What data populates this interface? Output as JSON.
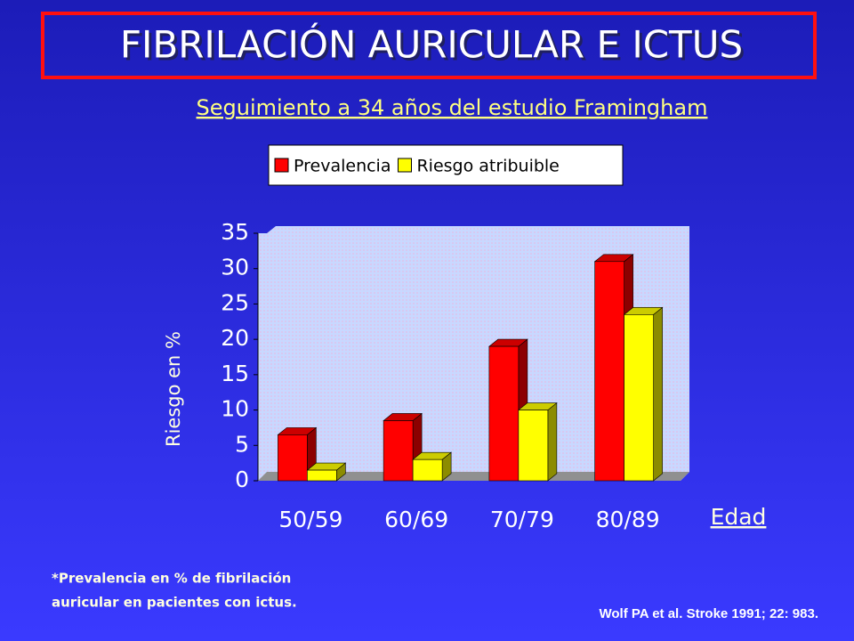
{
  "chart_data": {
    "type": "bar3d",
    "title": "FIBRILACIÓN AURICULAR E ICTUS",
    "subtitle": "Seguimiento a 34 años del estudio Framingham",
    "y_label": "Riesgo en %",
    "x_label": "Edad",
    "categories": [
      "50/59",
      "60/69",
      "70/79",
      "80/89"
    ],
    "series": [
      {
        "name": "Prevalencia",
        "color": "#ff0000",
        "values": [
          6.5,
          8.5,
          19,
          31
        ]
      },
      {
        "name": "Riesgo atribuible",
        "color": "#ffff00",
        "values": [
          1.5,
          3,
          10,
          23.5
        ]
      }
    ],
    "ylim": [
      0,
      35
    ],
    "yticks": [
      0,
      5,
      10,
      15,
      20,
      25,
      30,
      35
    ],
    "footnote": [
      "*Prevalencia en % de fibrilación",
      "auricular en pacientes con ictus."
    ],
    "citation": "Wolf PA et al. Stroke 1991; 22: 983."
  }
}
